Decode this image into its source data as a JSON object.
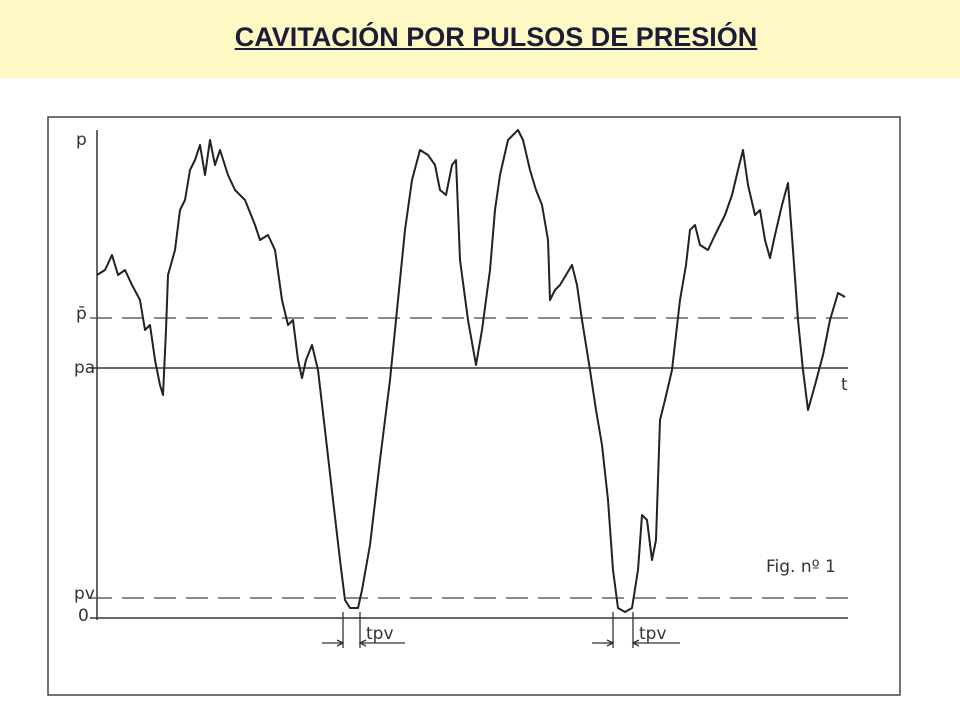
{
  "header": {
    "title": "CAVITACIÓN POR PULSOS DE PRESIÓN"
  },
  "figure": {
    "axis_labels": {
      "p": "p",
      "p_mean": "p̄",
      "pa": "pa",
      "pv": "pv",
      "zero": "0",
      "t": "t"
    },
    "interval_labels": [
      "tpv",
      "tpv"
    ],
    "caption": "Fig. nº 1"
  }
}
